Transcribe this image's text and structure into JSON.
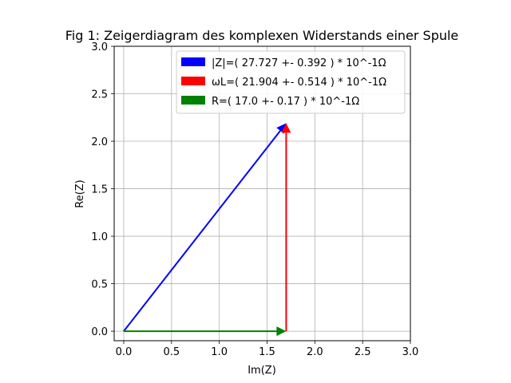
{
  "chart_data": {
    "type": "vector",
    "title": "Fig 1: Zeigerdiagram des komplexen Widerstands einer Spule",
    "xlabel": "Im(Z)",
    "ylabel": "Re(Z)",
    "xlim": [
      -0.1,
      3.0
    ],
    "ylim": [
      -0.1,
      3.0
    ],
    "xticks": [
      "0.0",
      "0.5",
      "1.0",
      "1.5",
      "2.0",
      "2.5",
      "3.0"
    ],
    "yticks": [
      "0.0",
      "0.5",
      "1.0",
      "1.5",
      "2.0",
      "2.5",
      "3.0"
    ],
    "grid": true,
    "legend_position": "top-right",
    "series": [
      {
        "name": "|Z|=( 27.727 +- 0.392 ) * 10^-1Ω",
        "color": "#0000ff",
        "x0": 0.0,
        "y0": 0.0,
        "x1": 1.7,
        "y1": 2.19
      },
      {
        "name": "ωL=( 21.904 +- 0.514 ) * 10^-1Ω",
        "color": "#ff0000",
        "x0": 1.7,
        "y0": 0.0,
        "x1": 1.7,
        "y1": 2.19
      },
      {
        "name": "R=( 17.0 +- 0.17 ) * 10^-1Ω",
        "color": "#008000",
        "x0": 0.0,
        "y0": 0.0,
        "x1": 1.7,
        "y1": 0.0
      }
    ]
  }
}
